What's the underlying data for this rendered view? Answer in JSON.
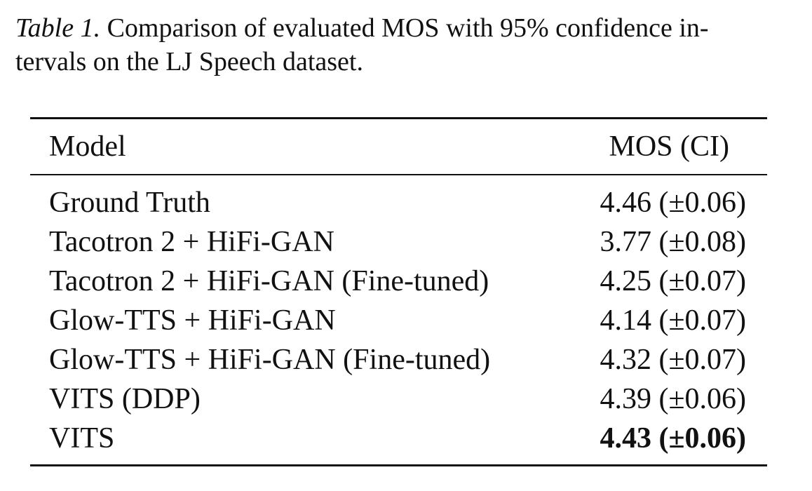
{
  "caption": {
    "label": "Table 1.",
    "line1_rest": " Comparison of evaluated MOS with 95% confidence in-",
    "line2": "tervals on the LJ Speech dataset."
  },
  "table": {
    "columns": [
      "Model",
      "MOS (CI)"
    ],
    "rows": [
      {
        "model": "Ground Truth",
        "mean": "4.46",
        "ci": "(±0.06)",
        "best": false
      },
      {
        "model": "Tacotron 2 + HiFi-GAN",
        "mean": "3.77",
        "ci": "(±0.08)",
        "best": false
      },
      {
        "model": "Tacotron 2 + HiFi-GAN (Fine-tuned)",
        "mean": "4.25",
        "ci": "(±0.07)",
        "best": false
      },
      {
        "model": "Glow-TTS + HiFi-GAN",
        "mean": "4.14",
        "ci": "(±0.07)",
        "best": false
      },
      {
        "model": "Glow-TTS + HiFi-GAN (Fine-tuned)",
        "mean": "4.32",
        "ci": "(±0.07)",
        "best": false
      },
      {
        "model": "VITS (DDP)",
        "mean": "4.39",
        "ci": "(±0.06)",
        "best": false
      },
      {
        "model": "VITS",
        "mean": "4.43",
        "ci": "(±0.06)",
        "best": true
      }
    ]
  }
}
